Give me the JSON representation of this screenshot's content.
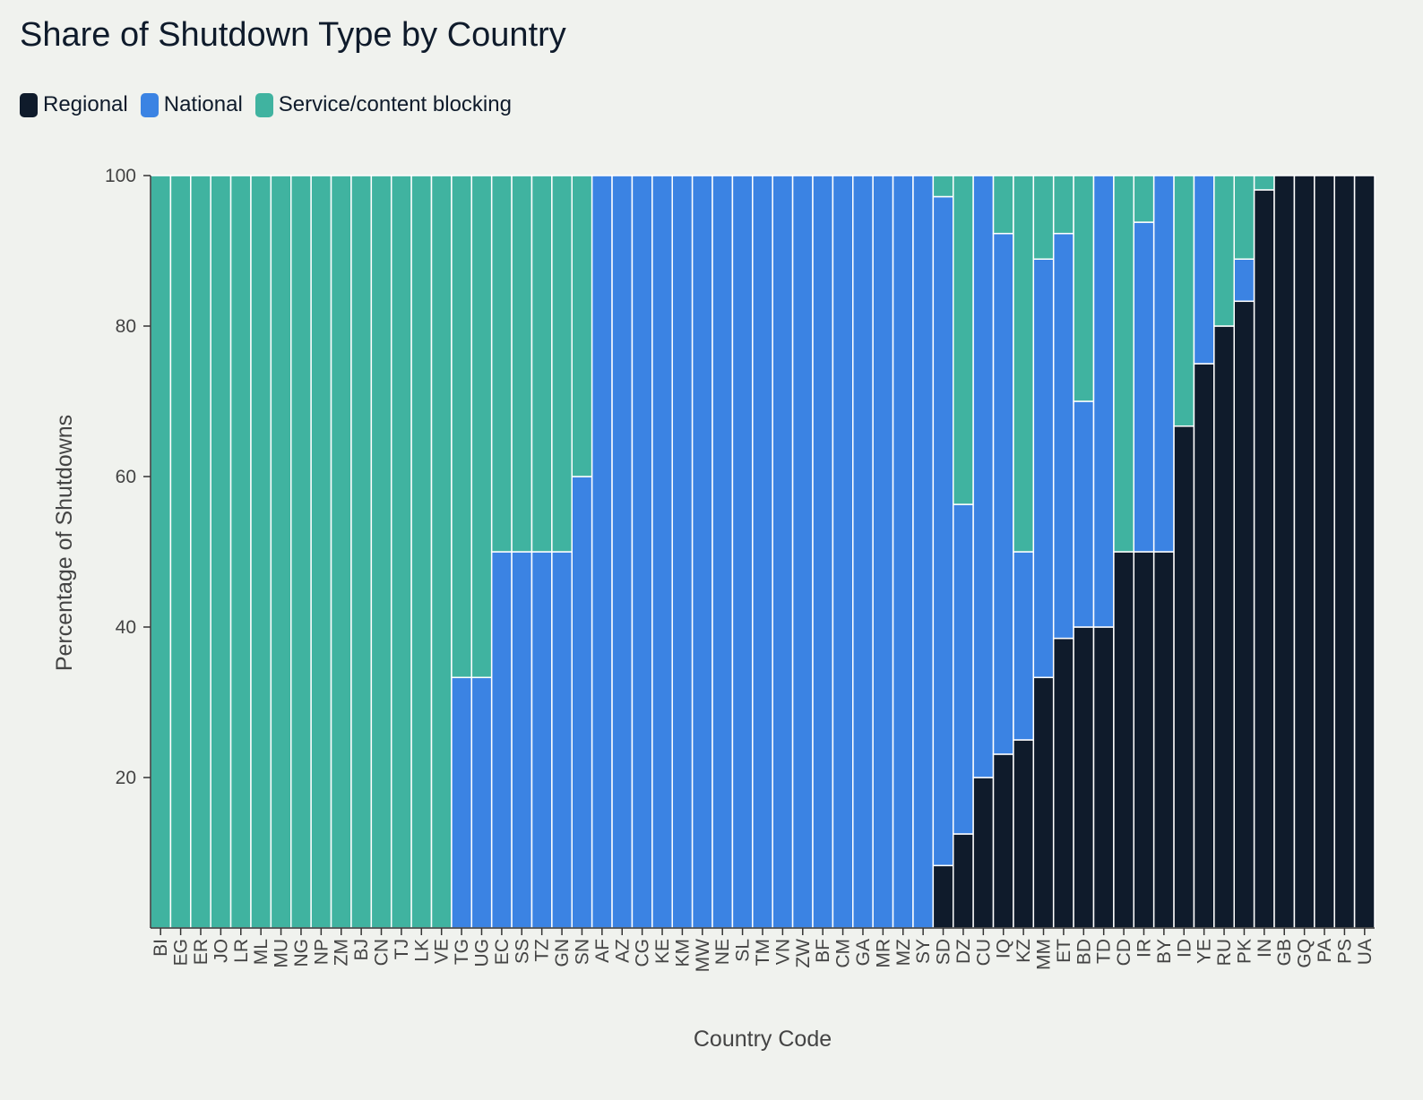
{
  "chart_data": {
    "type": "bar",
    "stacked": true,
    "title": "Share of Shutdown Type by Country",
    "xlabel": "Country Code",
    "ylabel": "Percentage of Shutdowns",
    "ylim": [
      0,
      100
    ],
    "yticks": [
      20,
      40,
      60,
      80,
      100
    ],
    "legend_position": "top-left",
    "categories": [
      "BI",
      "EG",
      "ER",
      "JO",
      "LR",
      "ML",
      "MU",
      "NG",
      "NP",
      "ZM",
      "BJ",
      "CN",
      "TJ",
      "LK",
      "VE",
      "TG",
      "UG",
      "EC",
      "SS",
      "TZ",
      "GN",
      "SN",
      "AF",
      "AZ",
      "CG",
      "KE",
      "KM",
      "MW",
      "NE",
      "SL",
      "TM",
      "VN",
      "ZW",
      "BF",
      "CM",
      "GA",
      "MR",
      "MZ",
      "SY",
      "SD",
      "DZ",
      "CU",
      "IQ",
      "KZ",
      "MM",
      "ET",
      "BD",
      "TD",
      "CD",
      "IR",
      "BY",
      "ID",
      "YE",
      "RU",
      "PK",
      "IN",
      "GB",
      "GQ",
      "PA",
      "PS",
      "UA"
    ],
    "series": [
      {
        "name": "Regional",
        "color": "#0f1b2b",
        "values": [
          0,
          0,
          0,
          0,
          0,
          0,
          0,
          0,
          0,
          0,
          0,
          0,
          0,
          0,
          0,
          0,
          0,
          0,
          0,
          0,
          0,
          0,
          0,
          0,
          0,
          0,
          0,
          0,
          0,
          0,
          0,
          0,
          0,
          0,
          0,
          0,
          0,
          0,
          0,
          8.3,
          12.5,
          20,
          23.1,
          25,
          33.3,
          38.5,
          40,
          40,
          50,
          50,
          50,
          66.7,
          75,
          80,
          83.3,
          98.1,
          100,
          100,
          100,
          100,
          100
        ]
      },
      {
        "name": "National",
        "color": "#3b83e3",
        "values": [
          0,
          0,
          0,
          0,
          0,
          0,
          0,
          0,
          0,
          0,
          0,
          0,
          0,
          0,
          0,
          33.3,
          33.3,
          50,
          50,
          50,
          50,
          60,
          100,
          100,
          100,
          100,
          100,
          100,
          100,
          100,
          100,
          100,
          100,
          100,
          100,
          100,
          100,
          100,
          100,
          88.9,
          43.8,
          80,
          69.2,
          25,
          55.6,
          53.8,
          30,
          60,
          0,
          43.8,
          50,
          0,
          25,
          0,
          5.6,
          0,
          0,
          0,
          0,
          0,
          0
        ]
      },
      {
        "name": "Service/content blocking",
        "color": "#40b3a0",
        "values": [
          100,
          100,
          100,
          100,
          100,
          100,
          100,
          100,
          100,
          100,
          100,
          100,
          100,
          100,
          100,
          66.7,
          66.7,
          50,
          50,
          50,
          50,
          40,
          0,
          0,
          0,
          0,
          0,
          0,
          0,
          0,
          0,
          0,
          0,
          0,
          0,
          0,
          0,
          0,
          0,
          2.8,
          43.7,
          0,
          7.7,
          50,
          11.1,
          7.7,
          30,
          0,
          50,
          6.2,
          0,
          33.3,
          0,
          20,
          11.1,
          1.9,
          0,
          0,
          0,
          0,
          0
        ]
      }
    ]
  }
}
